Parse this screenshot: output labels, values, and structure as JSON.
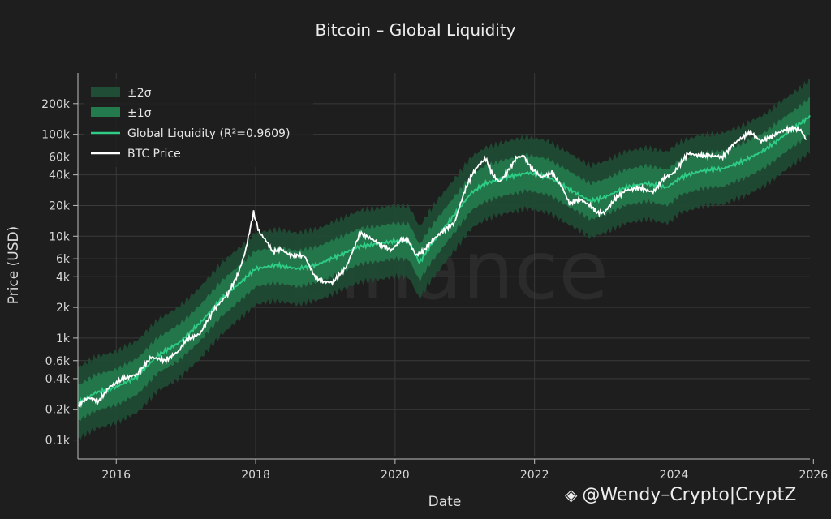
{
  "chart_data": {
    "type": "line",
    "title": "Bitcoin – Global Liquidity",
    "xlabel": "Date",
    "ylabel": "Price (USD)",
    "y_scale": "log",
    "ylim": [
      70,
      400000
    ],
    "xlim": [
      2015.45,
      2025.95
    ],
    "x_ticks": [
      {
        "value": 2016,
        "label": "2016"
      },
      {
        "value": 2018,
        "label": "2018"
      },
      {
        "value": 2020,
        "label": "2020"
      },
      {
        "value": 2022,
        "label": "2022"
      },
      {
        "value": 2024,
        "label": "2024"
      },
      {
        "value": 2026,
        "label": "2026"
      }
    ],
    "y_ticks": [
      {
        "value": 100,
        "label": "0.1k"
      },
      {
        "value": 200,
        "label": "0.2k"
      },
      {
        "value": 400,
        "label": "0.4k"
      },
      {
        "value": 600,
        "label": "0.6k"
      },
      {
        "value": 1000,
        "label": "1k"
      },
      {
        "value": 2000,
        "label": "2k"
      },
      {
        "value": 4000,
        "label": "4k"
      },
      {
        "value": 6000,
        "label": "6k"
      },
      {
        "value": 10000,
        "label": "10k"
      },
      {
        "value": 20000,
        "label": "20k"
      },
      {
        "value": 40000,
        "label": "40k"
      },
      {
        "value": 60000,
        "label": "60k"
      },
      {
        "value": 100000,
        "label": "100k"
      },
      {
        "value": 200000,
        "label": "200k"
      }
    ],
    "grid": true,
    "legend_position": "top-left",
    "legend": [
      {
        "label": "±2σ",
        "color": "#1f4d35"
      },
      {
        "label": "±1σ",
        "color": "#237a4c"
      },
      {
        "label": "Global Liquidity (R²=0.9609)",
        "color": "#2ecc85"
      },
      {
        "label": "BTC Price",
        "color": "#ffffff"
      }
    ],
    "band_1sigma_factor": 1.5,
    "band_2sigma_factor": 2.25,
    "series": [
      {
        "name": "Global Liquidity (R²=0.9609)",
        "color": "#2ecc85",
        "x": [
          2015.45,
          2015.7,
          2016.0,
          2016.3,
          2016.6,
          2016.9,
          2017.2,
          2017.5,
          2017.8,
          2018.0,
          2018.3,
          2018.6,
          2018.9,
          2019.2,
          2019.5,
          2019.8,
          2020.0,
          2020.2,
          2020.35,
          2020.5,
          2020.7,
          2020.9,
          2021.1,
          2021.3,
          2021.6,
          2021.9,
          2022.2,
          2022.5,
          2022.8,
          2023.0,
          2023.3,
          2023.6,
          2023.9,
          2024.1,
          2024.4,
          2024.7,
          2025.0,
          2025.3,
          2025.6,
          2025.95
        ],
        "values": [
          230,
          290,
          330,
          420,
          680,
          900,
          1400,
          2400,
          3600,
          4800,
          5200,
          4800,
          5300,
          6500,
          8000,
          8500,
          9000,
          8800,
          5500,
          8000,
          12000,
          18000,
          27000,
          33000,
          38000,
          42000,
          38000,
          29000,
          22000,
          24000,
          30000,
          33000,
          30000,
          38000,
          44000,
          46000,
          55000,
          70000,
          100000,
          150000
        ]
      },
      {
        "name": "BTC Price",
        "color": "#ffffff",
        "x": [
          2015.45,
          2015.6,
          2015.75,
          2015.9,
          2016.1,
          2016.3,
          2016.5,
          2016.7,
          2016.9,
          2017.0,
          2017.2,
          2017.4,
          2017.6,
          2017.75,
          2017.85,
          2017.97,
          2018.05,
          2018.15,
          2018.25,
          2018.35,
          2018.5,
          2018.7,
          2018.85,
          2018.95,
          2019.1,
          2019.3,
          2019.5,
          2019.65,
          2019.8,
          2019.95,
          2020.1,
          2020.2,
          2020.3,
          2020.4,
          2020.55,
          2020.7,
          2020.85,
          2021.0,
          2021.1,
          2021.2,
          2021.3,
          2021.4,
          2021.5,
          2021.6,
          2021.75,
          2021.85,
          2021.95,
          2022.1,
          2022.25,
          2022.4,
          2022.5,
          2022.65,
          2022.8,
          2022.9,
          2023.0,
          2023.15,
          2023.3,
          2023.5,
          2023.7,
          2023.85,
          2024.0,
          2024.2,
          2024.35,
          2024.5,
          2024.7,
          2024.85,
          2025.0,
          2025.1,
          2025.25,
          2025.4,
          2025.55,
          2025.7,
          2025.82,
          2025.9
        ],
        "values": [
          220,
          260,
          240,
          330,
          400,
          440,
          650,
          600,
          750,
          960,
          1100,
          1900,
          2700,
          4300,
          7000,
          17000,
          11000,
          9000,
          7000,
          7500,
          6500,
          6400,
          4000,
          3600,
          3500,
          5000,
          10800,
          9500,
          8200,
          7300,
          9500,
          8800,
          6500,
          7100,
          9300,
          11500,
          13500,
          28000,
          40000,
          50000,
          58000,
          40000,
          34000,
          42000,
          60000,
          61000,
          47000,
          38000,
          42000,
          30000,
          21000,
          23000,
          20000,
          17000,
          17000,
          23000,
          28000,
          30000,
          27000,
          37000,
          42000,
          65000,
          62000,
          62000,
          60000,
          80000,
          95000,
          105000,
          85000,
          95000,
          108000,
          115000,
          110000,
          88000
        ]
      }
    ]
  },
  "watermark": {
    "background_text": "binance",
    "footer_text": "@Wendy–Crypto|CryptZ",
    "logo_icon": "binance-diamond-icon"
  }
}
